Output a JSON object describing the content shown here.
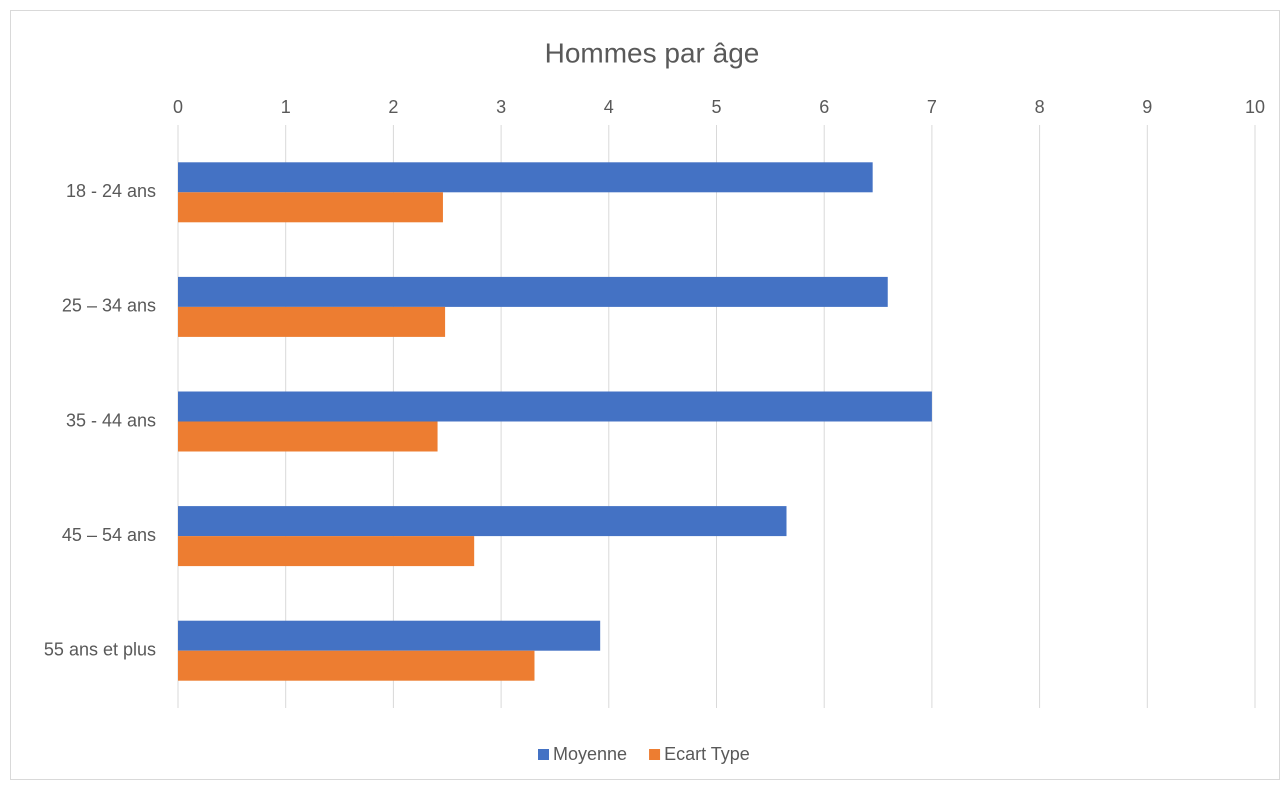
{
  "chart_data": {
    "type": "hbar",
    "title": "Hommes par âge",
    "categories": [
      "18 - 24 ans",
      "25 – 34 ans",
      "35 - 44 ans",
      "45 – 54 ans",
      "55 ans et plus"
    ],
    "series": [
      {
        "name": "Moyenne",
        "color": "#4472c4",
        "values": [
          6.45,
          6.59,
          7.0,
          5.65,
          3.92
        ]
      },
      {
        "name": "Ecart Type",
        "color": "#ed7d31",
        "values": [
          2.46,
          2.48,
          2.41,
          2.75,
          3.31
        ]
      }
    ],
    "xlim": [
      0,
      10
    ],
    "xticks": [
      0,
      1,
      2,
      3,
      4,
      5,
      6,
      7,
      8,
      9,
      10
    ],
    "grid": true,
    "legend": "bottom"
  }
}
